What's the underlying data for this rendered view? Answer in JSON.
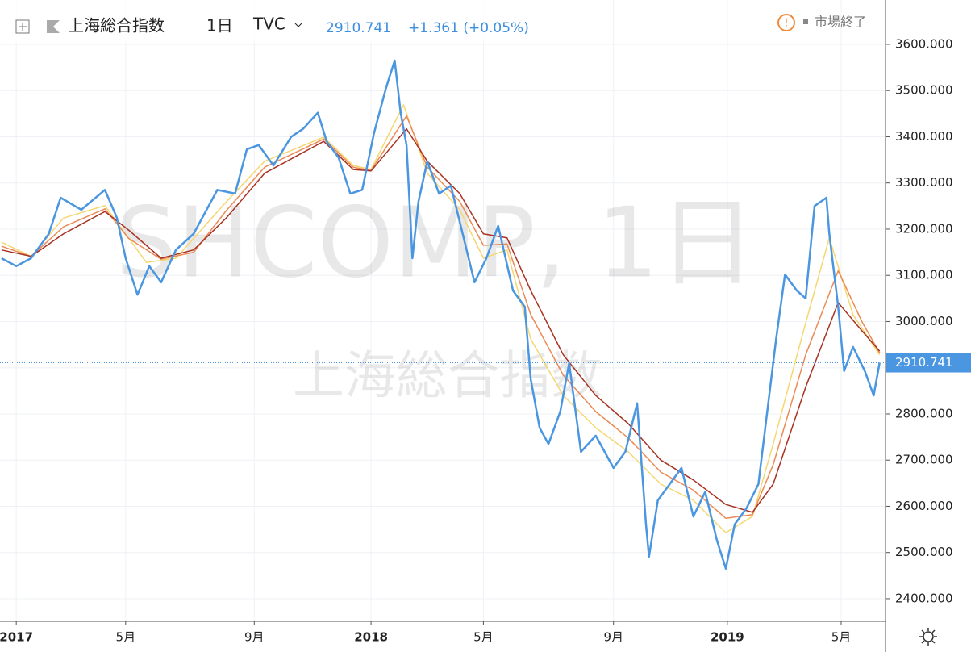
{
  "chart_data": {
    "type": "line",
    "symbol": "上海総合指数",
    "interval": "1日",
    "exchange": "TVC",
    "last_price": "2910.741",
    "change": "+1.361 (+0.05%)",
    "market_status": "市場終了",
    "watermark": "SHCOMP, 1日",
    "watermark_name": "上海総合指数",
    "xlim": [
      -0.55,
      29.4
    ],
    "ylim": [
      2351,
      3696
    ],
    "xticks": [
      {
        "value": 0,
        "label": "2017"
      },
      {
        "value": 3.7,
        "label": "5月"
      },
      {
        "value": 8.05,
        "label": "9月"
      },
      {
        "value": 12,
        "label": "2018"
      },
      {
        "value": 15.8,
        "label": "5月"
      },
      {
        "value": 20.2,
        "label": "9月"
      },
      {
        "value": 24.05,
        "label": "2019"
      },
      {
        "value": 27.9,
        "label": "5月"
      }
    ],
    "yticks": [
      {
        "value": 2400,
        "label": "2400.000"
      },
      {
        "value": 2500,
        "label": "2500.000"
      },
      {
        "value": 2600,
        "label": "2600.000"
      },
      {
        "value": 2700,
        "label": "2700.000"
      },
      {
        "value": 2800,
        "label": "2800.000"
      },
      {
        "value": 2900,
        "label": "2900.000"
      },
      {
        "value": 3000,
        "label": "3000.000"
      },
      {
        "value": 3100,
        "label": "3100.000"
      },
      {
        "value": 3200,
        "label": "3200.000"
      },
      {
        "value": 3300,
        "label": "3300.000"
      },
      {
        "value": 3400,
        "label": "3400.000"
      },
      {
        "value": 3500,
        "label": "3500.000"
      },
      {
        "value": 3600,
        "label": "3600.000"
      }
    ],
    "last_value": 2910.741,
    "series": [
      {
        "color": "#f5d770",
        "x": [
          -0.5,
          0.5,
          1.6,
          3.0,
          4.4,
          5.4,
          7.1,
          8.4,
          10.4,
          11.4,
          12.0,
          13.1,
          13.9,
          15.0,
          15.8,
          16.6,
          17.4,
          18.5,
          19.6,
          20.7,
          21.8,
          22.9,
          24.0,
          24.9,
          25.6,
          26.7,
          27.5,
          28.3,
          29.2
        ],
        "values": [
          3172,
          3141,
          3224,
          3251,
          3128,
          3137,
          3259,
          3347,
          3399,
          3338,
          3329,
          3469,
          3321,
          3242,
          3137,
          3155,
          2962,
          2840,
          2770,
          2718,
          2648,
          2613,
          2543,
          2578,
          2735,
          2997,
          3181,
          3015,
          2928
        ]
      },
      {
        "color": "#ec8a55",
        "x": [
          -0.5,
          0.5,
          1.6,
          3.0,
          3.8,
          4.9,
          6.0,
          7.1,
          8.4,
          10.4,
          11.4,
          12.0,
          13.2,
          13.9,
          15.0,
          15.8,
          16.6,
          17.4,
          18.5,
          19.6,
          20.7,
          21.8,
          22.9,
          24.0,
          24.9,
          25.6,
          26.7,
          27.8,
          28.6,
          29.2
        ],
        "values": [
          3163,
          3141,
          3205,
          3244,
          3180,
          3135,
          3150,
          3240,
          3334,
          3395,
          3334,
          3327,
          3445,
          3334,
          3260,
          3165,
          3168,
          3015,
          2884,
          2805,
          2748,
          2674,
          2635,
          2574,
          2582,
          2690,
          2928,
          3110,
          3000,
          2932
        ]
      },
      {
        "color": "#a83222",
        "x": [
          -0.5,
          0.5,
          1.6,
          3.0,
          3.8,
          4.9,
          6.0,
          7.1,
          8.4,
          10.4,
          11.4,
          12.0,
          13.2,
          13.9,
          15.0,
          15.8,
          16.6,
          17.4,
          18.5,
          19.6,
          20.7,
          21.8,
          22.9,
          24.0,
          24.9,
          25.6,
          26.7,
          27.8,
          28.6,
          29.2
        ],
        "values": [
          3155,
          3141,
          3190,
          3238,
          3198,
          3137,
          3155,
          3224,
          3321,
          3390,
          3329,
          3326,
          3417,
          3347,
          3277,
          3190,
          3181,
          3067,
          2928,
          2840,
          2779,
          2700,
          2657,
          2604,
          2587,
          2648,
          2858,
          3041,
          2980,
          2936
        ]
      },
      {
        "color": "#4a96e0",
        "x": [
          -0.5,
          0,
          0.5,
          1.1,
          1.5,
          2.2,
          3.0,
          3.4,
          3.7,
          4.1,
          4.5,
          4.9,
          5.4,
          6.0,
          6.8,
          7.4,
          7.8,
          8.2,
          8.7,
          9.3,
          9.7,
          10.2,
          10.5,
          10.9,
          11.3,
          11.7,
          12.1,
          12.5,
          12.8,
          13.0,
          13.2,
          13.4,
          13.6,
          13.9,
          14.3,
          14.7,
          15.1,
          15.5,
          15.9,
          16.3,
          16.8,
          17.2,
          17.4,
          17.7,
          18.0,
          18.4,
          18.7,
          19.1,
          19.6,
          20.2,
          20.6,
          21.0,
          21.3,
          21.4,
          21.7,
          22.1,
          22.5,
          22.9,
          23.3,
          23.7,
          24.0,
          24.3,
          24.7,
          25.1,
          25.3,
          25.7,
          26.0,
          26.4,
          26.7,
          27.0,
          27.4,
          27.5,
          27.8,
          28.0,
          28.3,
          28.7,
          29.0,
          29.2
        ],
        "values": [
          3137,
          3120,
          3137,
          3190,
          3268,
          3242,
          3285,
          3225,
          3137,
          3058,
          3120,
          3085,
          3155,
          3190,
          3285,
          3277,
          3373,
          3382,
          3338,
          3400,
          3417,
          3452,
          3390,
          3355,
          3277,
          3285,
          3408,
          3504,
          3565,
          3452,
          3382,
          3137,
          3259,
          3347,
          3277,
          3294,
          3190,
          3085,
          3137,
          3207,
          3067,
          3032,
          2875,
          2770,
          2735,
          2805,
          2910,
          2718,
          2753,
          2683,
          2718,
          2823,
          2561,
          2491,
          2613,
          2648,
          2683,
          2578,
          2631,
          2526,
          2465,
          2561,
          2596,
          2648,
          2753,
          2963,
          3102,
          3067,
          3050,
          3250,
          3268,
          3190,
          3032,
          2893,
          2945,
          2893,
          2840,
          2911
        ]
      }
    ]
  }
}
